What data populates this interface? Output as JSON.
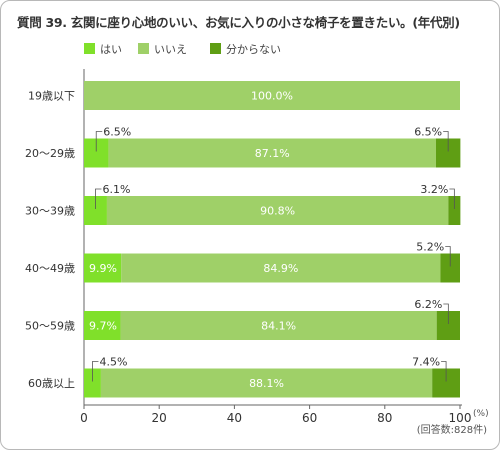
{
  "title": "質問 39. 玄関に座り心地のいい、お気に入りの小さな椅子を置きたい。(年代別)",
  "chart_data": {
    "type": "bar",
    "orientation": "horizontal",
    "stacked": true,
    "categories": [
      "19歳以下",
      "20〜29歳",
      "30〜39歳",
      "40〜49歳",
      "50〜59歳",
      "60歳以上"
    ],
    "series": [
      {
        "name": "はい",
        "color": "#80e02a",
        "values": [
          0,
          6.5,
          6.1,
          9.9,
          9.7,
          4.5
        ],
        "labels": [
          "",
          "6.5%",
          "6.1%",
          "9.9%",
          "9.7%",
          "4.5%"
        ]
      },
      {
        "name": "いいえ",
        "color": "#9fd068",
        "values": [
          100,
          87.1,
          90.8,
          84.9,
          84.1,
          88.1
        ],
        "labels": [
          "100.0%",
          "87.1%",
          "90.8%",
          "84.9%",
          "84.1%",
          "88.1%"
        ]
      },
      {
        "name": "分からない",
        "color": "#5f9e14",
        "values": [
          0,
          6.5,
          3.2,
          5.2,
          6.2,
          7.4
        ],
        "labels": [
          "",
          "6.5%",
          "3.2%",
          "5.2%",
          "6.2%",
          "7.4%"
        ]
      }
    ],
    "xlim": [
      0,
      100
    ],
    "xticks": [
      "0",
      "20",
      "40",
      "60",
      "80",
      "100"
    ],
    "xunit": "(%)",
    "legend_position": "top-left",
    "note": "(回答数:828件)"
  }
}
